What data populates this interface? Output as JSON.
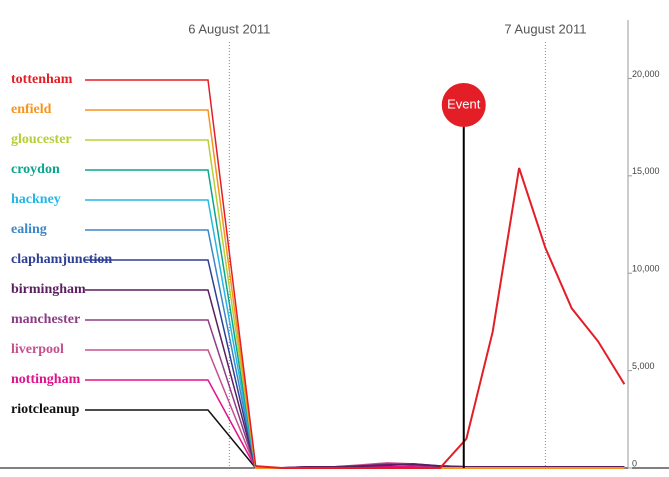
{
  "chart_data": {
    "type": "line",
    "x": [
      2,
      4,
      6,
      8,
      10,
      12,
      14,
      16,
      18,
      20,
      22,
      24,
      26,
      28,
      30
    ],
    "xlim": [
      -2,
      30.5
    ],
    "xticks": [
      {
        "value": 0,
        "label": "6 August 2011"
      },
      {
        "value": 24,
        "label": "7 August 2011"
      }
    ],
    "ylim": [
      0,
      23000
    ],
    "yticks": [
      0,
      {
        "value": 5000,
        "label": "5,000"
      },
      {
        "value": 10000,
        "label": "10,000"
      },
      {
        "value": 15000,
        "label": "15,000"
      },
      {
        "value": 20000,
        "label": "20,000"
      }
    ],
    "annotation": {
      "text": "Event",
      "x": 17.8
    },
    "series": [
      {
        "name": "tottenham",
        "color": "#e31e26",
        "values": [
          100,
          0,
          0,
          0,
          0,
          0,
          0,
          0,
          1500,
          7000,
          15400,
          11300,
          8200,
          6500,
          4300
        ]
      },
      {
        "name": "enfield",
        "color": "#f7941d",
        "values": [
          0,
          0,
          0,
          0,
          0,
          0,
          0,
          0,
          0,
          0,
          0,
          0,
          0,
          0,
          0
        ]
      },
      {
        "name": "gloucester",
        "color": "#b5cf3a",
        "values": [
          0,
          0,
          0,
          0,
          0,
          0,
          0,
          0,
          0,
          0,
          0,
          0,
          0,
          0,
          0
        ]
      },
      {
        "name": "croydon",
        "color": "#0aa58c",
        "values": [
          0,
          0,
          0,
          0,
          0,
          0,
          0,
          0,
          0,
          0,
          0,
          0,
          0,
          0,
          0
        ]
      },
      {
        "name": "hackney",
        "color": "#27b6e5",
        "values": [
          0,
          0,
          0,
          0,
          0,
          0,
          0,
          0,
          0,
          0,
          0,
          0,
          0,
          0,
          0
        ]
      },
      {
        "name": "ealing",
        "color": "#3d87c8",
        "values": [
          0,
          0,
          0,
          0,
          0,
          0,
          0,
          0,
          0,
          0,
          0,
          0,
          0,
          0,
          0
        ]
      },
      {
        "name": "claphamjunction",
        "color": "#2f3f94",
        "values": [
          0,
          0,
          0,
          0,
          0,
          0,
          0,
          0,
          0,
          0,
          0,
          0,
          0,
          0,
          0
        ]
      },
      {
        "name": "birmingham",
        "color": "#5b1f60",
        "values": [
          0,
          0,
          50,
          50,
          100,
          150,
          200,
          100,
          50,
          50,
          50,
          50,
          50,
          50,
          50
        ]
      },
      {
        "name": "manchester",
        "color": "#8d3d85",
        "values": [
          0,
          0,
          50,
          50,
          100,
          200,
          150,
          100,
          50,
          50,
          50,
          50,
          50,
          50,
          50
        ]
      },
      {
        "name": "liverpool",
        "color": "#c5508e",
        "values": [
          0,
          0,
          50,
          50,
          150,
          250,
          200,
          100,
          50,
          50,
          50,
          50,
          50,
          0,
          0
        ]
      },
      {
        "name": "nottingham",
        "color": "#e0138c",
        "values": [
          0,
          0,
          0,
          0,
          50,
          50,
          50,
          0,
          0,
          0,
          0,
          0,
          0,
          0,
          0
        ]
      },
      {
        "name": "riotcleanup",
        "color": "#111111",
        "values": [
          0,
          0,
          0,
          0,
          0,
          0,
          0,
          0,
          0,
          0,
          0,
          0,
          0,
          0,
          0
        ]
      }
    ]
  }
}
